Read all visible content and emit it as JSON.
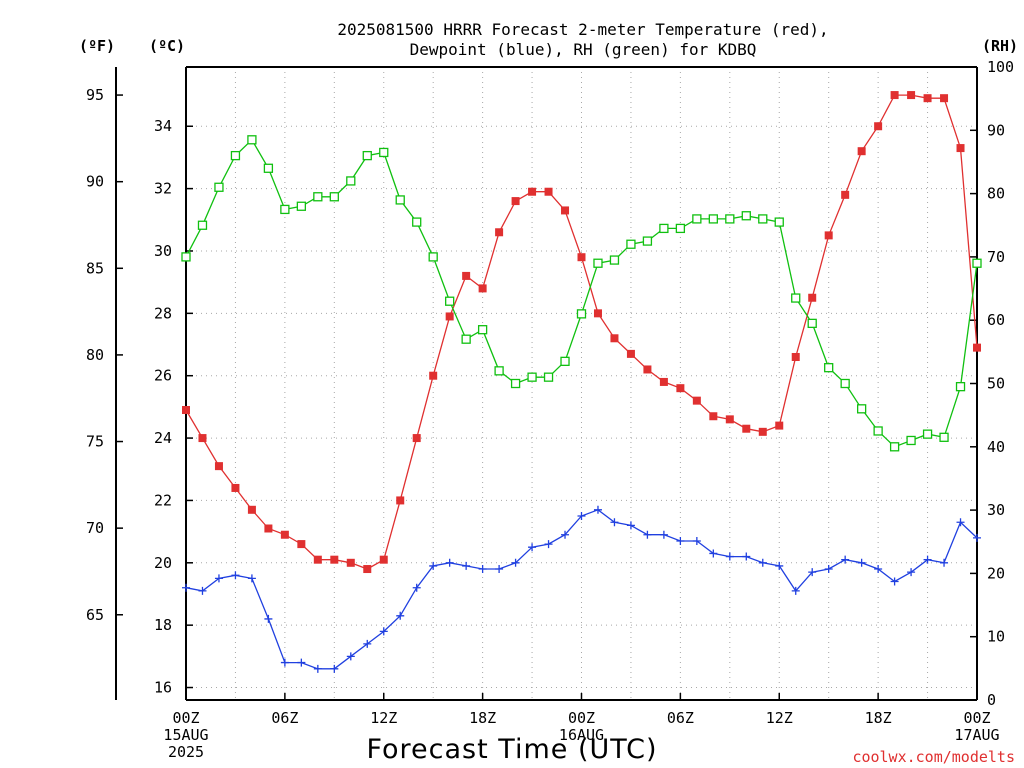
{
  "chart_data": {
    "type": "line",
    "title": [
      "2025081500 HRRR Forecast 2-meter Temperature (red),",
      "Dewpoint (blue), RH (green) for KDBQ"
    ],
    "xlabel": "Forecast Time (UTC)",
    "units": {
      "left_f": "(ºF)",
      "left_c": "(ºC)",
      "right_rh": "(RH)"
    },
    "credit": "coolwx.com/modelts",
    "grid": true,
    "x": {
      "min": 0,
      "max": 48,
      "unit": "forecast hour"
    },
    "x_ticks": [
      {
        "x": 0,
        "lines": [
          "00Z",
          "15AUG",
          "2025"
        ]
      },
      {
        "x": 6,
        "lines": [
          "06Z"
        ]
      },
      {
        "x": 12,
        "lines": [
          "12Z"
        ]
      },
      {
        "x": 18,
        "lines": [
          "18Z"
        ]
      },
      {
        "x": 24,
        "lines": [
          "00Z",
          "16AUG"
        ]
      },
      {
        "x": 30,
        "lines": [
          "06Z"
        ]
      },
      {
        "x": 36,
        "lines": [
          "12Z"
        ]
      },
      {
        "x": 42,
        "lines": [
          "18Z"
        ]
      },
      {
        "x": 48,
        "lines": [
          "00Z",
          "17AUG"
        ]
      }
    ],
    "celsius_axis": {
      "ylim": [
        15.6,
        35.9
      ],
      "ticks": [
        "16",
        "18",
        "20",
        "22",
        "24",
        "26",
        "28",
        "30",
        "32",
        "34"
      ]
    },
    "fahrenheit_axis": {
      "ticks": [
        "65",
        "70",
        "75",
        "80",
        "85",
        "90",
        "95"
      ]
    },
    "rh_axis": {
      "ylim": [
        0,
        100
      ],
      "ticks": [
        "0",
        "10",
        "20",
        "30",
        "40",
        "50",
        "60",
        "70",
        "80",
        "90",
        "100"
      ]
    },
    "series": [
      {
        "axis": "celsius",
        "color": "#e03030",
        "marker": "filled-square",
        "values": [
          24.9,
          24.0,
          23.1,
          22.4,
          21.7,
          21.1,
          20.9,
          20.6,
          20.1,
          20.1,
          20.0,
          19.8,
          20.1,
          22.0,
          24.0,
          26.0,
          27.9,
          29.2,
          28.8,
          30.6,
          31.6,
          31.9,
          31.9,
          31.3,
          29.8,
          28.0,
          27.2,
          26.7,
          26.2,
          25.8,
          25.6,
          25.2,
          24.7,
          24.6,
          24.3,
          24.2,
          24.4,
          26.6,
          28.5,
          30.5,
          31.8,
          33.2,
          34.0,
          35.0,
          35.0,
          34.9,
          34.9,
          33.3,
          26.9
        ]
      },
      {
        "axis": "celsius",
        "color": "#2040e0",
        "marker": "plus",
        "values": [
          19.2,
          19.1,
          19.5,
          19.6,
          19.5,
          18.2,
          16.8,
          16.8,
          16.6,
          16.6,
          17.0,
          17.4,
          17.8,
          18.3,
          19.2,
          19.9,
          20.0,
          19.9,
          19.8,
          19.8,
          20.0,
          20.5,
          20.6,
          20.9,
          21.5,
          21.7,
          21.3,
          21.2,
          20.9,
          20.9,
          20.7,
          20.7,
          20.3,
          20.2,
          20.2,
          20.0,
          19.9,
          19.1,
          19.7,
          19.8,
          20.1,
          20.0,
          19.8,
          19.4,
          19.7,
          20.1,
          20.0,
          21.3,
          20.8
        ]
      },
      {
        "axis": "rh",
        "color": "#10c010",
        "marker": "open-square",
        "values": [
          70,
          75,
          81,
          86,
          88.5,
          84,
          77.5,
          78,
          79.5,
          79.5,
          82,
          86,
          86.5,
          79,
          75.5,
          70,
          63,
          57,
          58.5,
          52,
          50,
          51,
          51,
          53.5,
          61,
          69,
          69.5,
          72,
          72.5,
          74.5,
          74.5,
          76,
          76,
          76,
          76.5,
          76,
          75.5,
          63.5,
          59.5,
          52.5,
          50,
          46,
          42.5,
          40,
          41,
          42,
          41.5,
          49.5,
          69
        ]
      }
    ]
  }
}
